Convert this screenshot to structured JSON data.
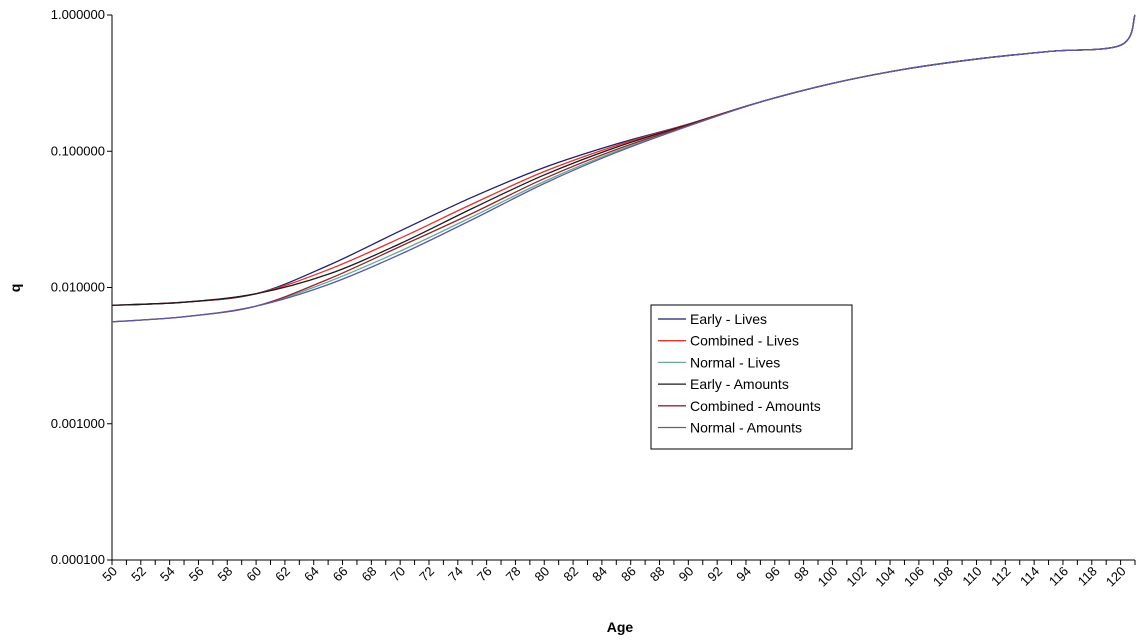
{
  "chart_data": {
    "type": "line",
    "title": "",
    "xlabel": "Age",
    "ylabel": "q",
    "yscale": "log",
    "ylim": [
      0.0001,
      1.0
    ],
    "xlim": [
      50,
      121
    ],
    "y_tick_labels": [
      "1.000000",
      "0.100000",
      "0.010000",
      "0.001000",
      "0.000100"
    ],
    "y_tick_values": [
      1.0,
      0.1,
      0.01,
      0.001,
      0.0001
    ],
    "x_tick_labels": [
      "50",
      "52",
      "54",
      "56",
      "58",
      "60",
      "62",
      "64",
      "66",
      "68",
      "70",
      "72",
      "74",
      "76",
      "78",
      "80",
      "82",
      "84",
      "86",
      "88",
      "90",
      "92",
      "94",
      "96",
      "98",
      "100",
      "102",
      "104",
      "106",
      "108",
      "110",
      "112",
      "114",
      "116",
      "118",
      "120"
    ],
    "grid": false,
    "legend_position": "center-right",
    "x": [
      50,
      55,
      60,
      65,
      70,
      75,
      80,
      85,
      90,
      95,
      100,
      105,
      110,
      115,
      120,
      121
    ],
    "series": [
      {
        "name": "Early - Lives",
        "color": "#1f1f6b",
        "values": [
          0.0074,
          0.0078,
          0.009,
          0.0145,
          0.026,
          0.046,
          0.076,
          0.113,
          0.158,
          0.23,
          0.315,
          0.4,
          0.475,
          0.54,
          0.6,
          1.0
        ]
      },
      {
        "name": "Combined - Lives",
        "color": "#e8302c",
        "values": [
          0.0074,
          0.0078,
          0.009,
          0.0135,
          0.023,
          0.041,
          0.071,
          0.11,
          0.158,
          0.23,
          0.315,
          0.4,
          0.475,
          0.54,
          0.6,
          1.0
        ]
      },
      {
        "name": "Normal - Lives",
        "color": "#6aa89a",
        "values": [
          0.0056,
          0.0061,
          0.0073,
          0.011,
          0.0185,
          0.033,
          0.06,
          0.1,
          0.154,
          0.23,
          0.315,
          0.4,
          0.475,
          0.54,
          0.6,
          1.0
        ]
      },
      {
        "name": "Early - Amounts",
        "color": "#1a1a1a",
        "values": [
          0.0074,
          0.0078,
          0.009,
          0.0125,
          0.021,
          0.038,
          0.067,
          0.107,
          0.157,
          0.23,
          0.315,
          0.4,
          0.475,
          0.54,
          0.6,
          1.0
        ]
      },
      {
        "name": "Combined - Amounts",
        "color": "#8b2a2a",
        "values": [
          0.0056,
          0.0061,
          0.0073,
          0.0115,
          0.02,
          0.035,
          0.063,
          0.103,
          0.155,
          0.23,
          0.315,
          0.4,
          0.475,
          0.54,
          0.6,
          1.0
        ]
      },
      {
        "name": "Normal - Amounts",
        "color": "#5a5aa8",
        "values": [
          0.0056,
          0.0061,
          0.0073,
          0.0105,
          0.0175,
          0.0315,
          0.058,
          0.098,
          0.153,
          0.23,
          0.315,
          0.4,
          0.475,
          0.54,
          0.6,
          1.0
        ]
      }
    ]
  }
}
